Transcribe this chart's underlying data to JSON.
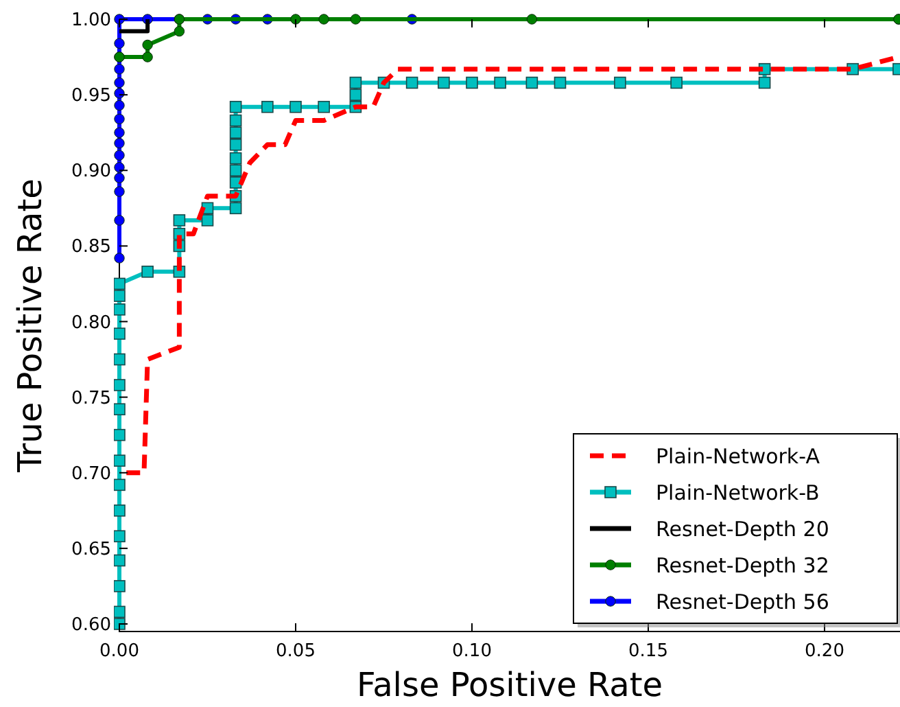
{
  "chart_data": {
    "type": "line",
    "xlabel": "False Positive Rate",
    "ylabel": "True Positive Rate",
    "xlim": [
      0,
      0.2214
    ],
    "ylim": [
      0.595,
      1.0
    ],
    "xticks": [
      {
        "value": 0,
        "label": "0.00"
      },
      {
        "value": 0.05,
        "label": "0.05"
      },
      {
        "value": 0.1,
        "label": "0.10"
      },
      {
        "value": 0.15,
        "label": "0.15"
      },
      {
        "value": 0.2,
        "label": "0.20"
      }
    ],
    "yticks": [
      {
        "value": 0.6,
        "label": "0.60"
      },
      {
        "value": 0.65,
        "label": "0.65"
      },
      {
        "value": 0.7,
        "label": "0.70"
      },
      {
        "value": 0.75,
        "label": "0.75"
      },
      {
        "value": 0.8,
        "label": "0.80"
      },
      {
        "value": 0.85,
        "label": "0.85"
      },
      {
        "value": 0.9,
        "label": "0.90"
      },
      {
        "value": 0.95,
        "label": "0.95"
      },
      {
        "value": 1.0,
        "label": "1.00"
      }
    ],
    "grid": false,
    "legend": "bottom right",
    "series": [
      {
        "name": "Plain-Network-A",
        "color": "#ff0000",
        "marker": "none",
        "line_style": "dashed",
        "x": [
          0.002,
          0.007,
          0.008,
          0.017,
          0.017,
          0.021,
          0.025,
          0.033,
          0.037,
          0.042,
          0.047,
          0.05,
          0.058,
          0.067,
          0.072,
          0.075,
          0.079,
          0.208,
          0.221
        ],
        "values": [
          0.7,
          0.7,
          0.775,
          0.783,
          0.858,
          0.858,
          0.883,
          0.883,
          0.905,
          0.917,
          0.917,
          0.933,
          0.933,
          0.942,
          0.942,
          0.958,
          0.967,
          0.967,
          0.975
        ]
      },
      {
        "name": "Plain-Network-B",
        "color": "#00bfbf",
        "marker": "square",
        "line_style": "solid",
        "x": [
          0,
          0,
          0,
          0,
          0,
          0,
          0,
          0,
          0,
          0,
          0,
          0,
          0,
          0,
          0,
          0,
          0.008,
          0.017,
          0.017,
          0.017,
          0.017,
          0.025,
          0.025,
          0.033,
          0.033,
          0.033,
          0.033,
          0.033,
          0.033,
          0.033,
          0.033,
          0.033,
          0.042,
          0.05,
          0.058,
          0.067,
          0.067,
          0.067,
          0.075,
          0.083,
          0.092,
          0.1,
          0.108,
          0.117,
          0.125,
          0.142,
          0.158,
          0.183,
          0.183,
          0.208,
          0.221
        ],
        "values": [
          0.6,
          0.608,
          0.625,
          0.642,
          0.658,
          0.675,
          0.692,
          0.708,
          0.725,
          0.742,
          0.758,
          0.775,
          0.792,
          0.808,
          0.817,
          0.825,
          0.833,
          0.833,
          0.85,
          0.858,
          0.867,
          0.867,
          0.875,
          0.875,
          0.883,
          0.892,
          0.9,
          0.908,
          0.917,
          0.925,
          0.933,
          0.942,
          0.942,
          0.942,
          0.942,
          0.942,
          0.95,
          0.958,
          0.958,
          0.958,
          0.958,
          0.958,
          0.958,
          0.958,
          0.958,
          0.958,
          0.958,
          0.958,
          0.967,
          0.967,
          0.967
        ]
      },
      {
        "name": "Resnet-Depth 20",
        "color": "#000000",
        "marker": "none",
        "line_style": "solid",
        "x": [
          0,
          0.008,
          0.008
        ],
        "values": [
          0.992,
          0.992,
          1.0
        ]
      },
      {
        "name": "Resnet-Depth 32",
        "color": "#007f00",
        "marker": "circle",
        "line_style": "solid",
        "x": [
          0,
          0.008,
          0.008,
          0.017,
          0.017,
          0.05,
          0.058,
          0.067,
          0.117,
          0.221
        ],
        "values": [
          0.975,
          0.975,
          0.983,
          0.992,
          1.0,
          1.0,
          1.0,
          1.0,
          1.0,
          1.0
        ]
      },
      {
        "name": "Resnet-Depth 56",
        "color": "#0000ff",
        "marker": "circle",
        "line_style": "solid",
        "x": [
          0,
          0,
          0,
          0,
          0,
          0,
          0,
          0,
          0,
          0,
          0,
          0,
          0,
          0,
          0,
          0,
          0.008,
          0.017,
          0.025,
          0.033,
          0.042,
          0.083,
          0.221
        ],
        "values": [
          0.842,
          0.867,
          0.886,
          0.895,
          0.902,
          0.91,
          0.918,
          0.925,
          0.934,
          0.943,
          0.951,
          0.958,
          0.967,
          0.975,
          0.984,
          1.0,
          1.0,
          1.0,
          1.0,
          1.0,
          1.0,
          1.0,
          1.0
        ]
      }
    ]
  }
}
